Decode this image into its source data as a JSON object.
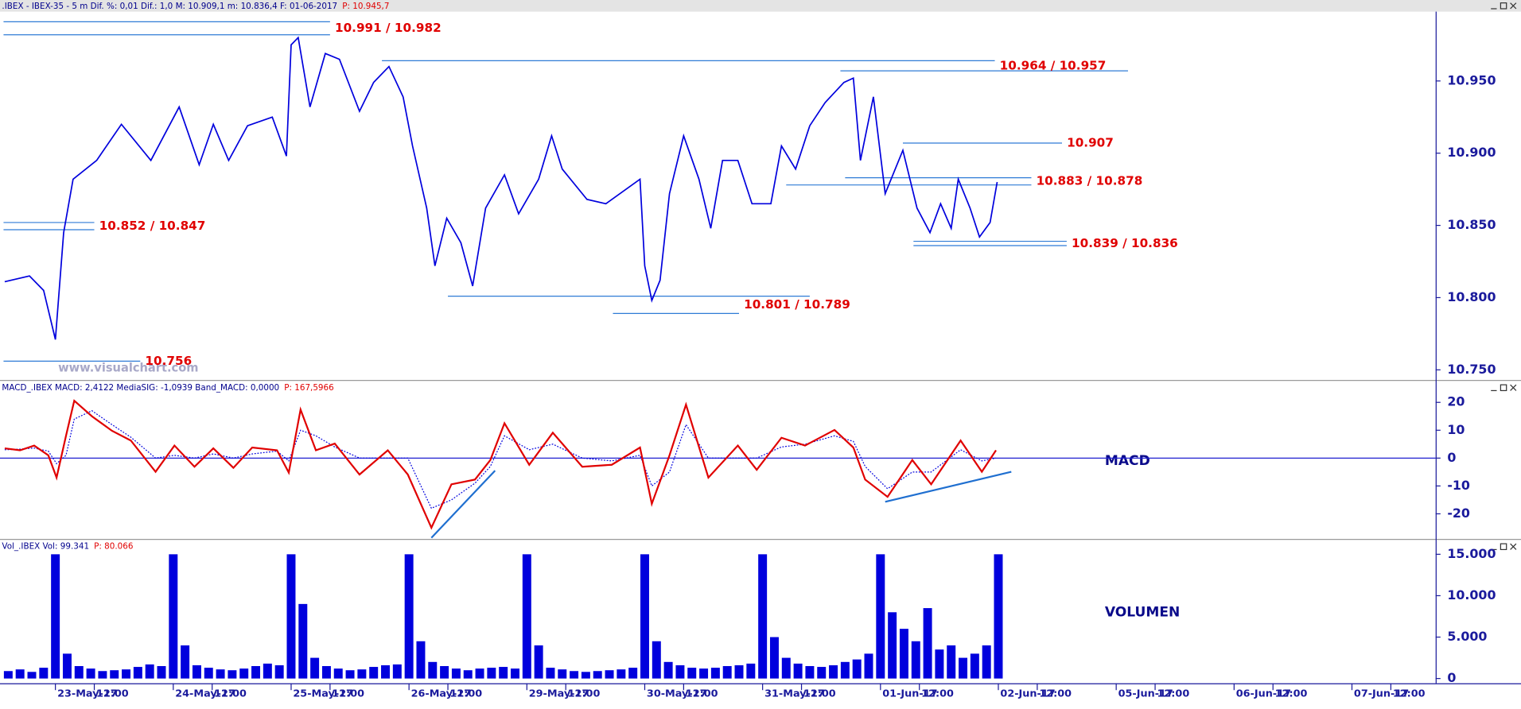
{
  "chart_data": [
    {
      "type": "line",
      "title": ".IBEX - IBEX-35 -  5 m  Dif. %: 0,01  Dif.: 1,0  M: 10.909,1  m: 10.836,4  F: 01-06-2017",
      "title_extra": "P: 10.945,7",
      "watermark": "www.visualchart.com",
      "color": "#0000dd",
      "xlim": [
        -0.47,
        11.71
      ],
      "ylim": [
        10743,
        10998
      ],
      "yticks": [
        {
          "value": 10750,
          "label": "10.750"
        },
        {
          "value": 10800,
          "label": "10.800"
        },
        {
          "value": 10850,
          "label": "10.850"
        },
        {
          "value": 10900,
          "label": "10.900"
        },
        {
          "value": 10950,
          "label": "10.950"
        }
      ],
      "x": [
        -0.43,
        -0.22,
        -0.1,
        0,
        0.07,
        0.15,
        0.35,
        0.56,
        0.81,
        1.05,
        1.22,
        1.34,
        1.47,
        1.63,
        1.84,
        1.96,
        2.0,
        2.06,
        2.16,
        2.29,
        2.41,
        2.58,
        2.7,
        2.83,
        2.95,
        3.03,
        3.15,
        3.22,
        3.32,
        3.44,
        3.54,
        3.65,
        3.81,
        3.93,
        4.1,
        4.21,
        4.3,
        4.51,
        4.67,
        4.96,
        5.0,
        5.06,
        5.13,
        5.21,
        5.33,
        5.46,
        5.56,
        5.66,
        5.79,
        5.91,
        6.07,
        6.16,
        6.28,
        6.4,
        6.53,
        6.69,
        6.77,
        6.83,
        6.94,
        7.04,
        7.19,
        7.31,
        7.42,
        7.51,
        7.6,
        7.66,
        7.76,
        7.84,
        7.93,
        7.99
      ],
      "values": [
        10811,
        10815,
        10805,
        10771,
        10845,
        10882,
        10895,
        10920,
        10895,
        10932,
        10892,
        10920,
        10895,
        10919,
        10925,
        10898,
        10975,
        10980,
        10932,
        10969,
        10965,
        10929,
        10949,
        10960,
        10939,
        10905,
        10862,
        10822,
        10855,
        10838,
        10808,
        10862,
        10885,
        10858,
        10882,
        10912,
        10889,
        10868,
        10865,
        10882,
        10822,
        10798,
        10812,
        10872,
        10912,
        10882,
        10848,
        10895,
        10895,
        10865,
        10865,
        10905,
        10889,
        10919,
        10935,
        10949,
        10952,
        10895,
        10939,
        10872,
        10902,
        10862,
        10845,
        10865,
        10848,
        10882,
        10862,
        10842,
        10852,
        10880
      ],
      "levels": [
        {
          "label": "10.991 / 10.982",
          "lines": [
            {
              "value": 10991,
              "x": [
                -0.44,
                2.33
              ]
            },
            {
              "value": 10982,
              "x": [
                -0.44,
                2.33
              ]
            }
          ]
        },
        {
          "label": "10.964 / 10.957",
          "lines": [
            {
              "value": 10964,
              "x": [
                2.77,
                7.97
              ]
            },
            {
              "value": 10957,
              "x": [
                6.66,
                9.1
              ]
            }
          ]
        },
        {
          "label": "10.907",
          "lines": [
            {
              "value": 10907,
              "x": [
                7.19,
                8.54
              ]
            }
          ]
        },
        {
          "label": "10.883 / 10.878",
          "lines": [
            {
              "value": 10883,
              "x": [
                6.7,
                8.28
              ]
            },
            {
              "value": 10878,
              "x": [
                6.2,
                8.28
              ]
            }
          ]
        },
        {
          "label": "10.852 / 10.847",
          "lines": [
            {
              "value": 10852,
              "x": [
                -0.44,
                0.33
              ]
            },
            {
              "value": 10847,
              "x": [
                -0.44,
                0.33
              ]
            }
          ]
        },
        {
          "label": "10.839 / 10.836",
          "lines": [
            {
              "value": 10839,
              "x": [
                7.28,
                8.58
              ]
            },
            {
              "value": 10836,
              "x": [
                7.28,
                8.58
              ]
            }
          ]
        },
        {
          "label": "10.801 / 10.789",
          "lines": [
            {
              "value": 10801,
              "x": [
                3.33,
                6.4
              ]
            },
            {
              "value": 10789,
              "x": [
                4.73,
                5.8
              ]
            }
          ]
        },
        {
          "label": "10.756",
          "lines": [
            {
              "value": 10756,
              "x": [
                -0.44,
                0.72
              ]
            }
          ]
        }
      ]
    },
    {
      "type": "line",
      "title": "MACD_.IBEX  MACD: 2,4122  MediaSIG: -1,0939  Band_MACD: 0,0000",
      "title_extra": "P: 167,5966",
      "panel_label": "MACD",
      "xlim": [
        -0.47,
        11.71
      ],
      "ylim": [
        -29,
        27.7
      ],
      "yticks": [
        -20,
        -10,
        0,
        10,
        20
      ],
      "x": [
        -0.43,
        -0.3,
        -0.18,
        -0.06,
        0.01,
        0.09,
        0.16,
        0.31,
        0.48,
        0.64,
        0.85,
        1.01,
        1.18,
        1.34,
        1.51,
        1.67,
        1.88,
        1.98,
        2.08,
        2.21,
        2.37,
        2.58,
        2.82,
        2.99,
        3.19,
        3.36,
        3.56,
        3.69,
        3.81,
        4.02,
        4.22,
        4.47,
        4.72,
        4.96,
        5.06,
        5.21,
        5.35,
        5.54,
        5.79,
        5.95,
        6.16,
        6.36,
        6.61,
        6.77,
        6.87,
        7.06,
        7.27,
        7.43,
        7.68,
        7.86,
        7.98
      ],
      "series": [
        {
          "name": "MACD",
          "color": "#e00000",
          "style": "solid",
          "values": [
            3.5,
            2.8,
            4.5,
            1,
            -7,
            8,
            20.6,
            15,
            9.8,
            6.3,
            -4.9,
            4.5,
            -3.1,
            3.5,
            -3.5,
            3.8,
            2.8,
            -5.2,
            17.4,
            2.8,
            5.2,
            -5.9,
            2.8,
            -5.9,
            -25,
            -9.4,
            -7.7,
            -0.7,
            12.5,
            -2.4,
            9.1,
            -3.1,
            -2.4,
            3.8,
            -16.4,
            1,
            19.2,
            -7,
            4.5,
            -4.2,
            7.3,
            4.5,
            10.1,
            3.8,
            -7.7,
            -13.9,
            -0.7,
            -9.4,
            6.3,
            -4.9,
            2.8
          ]
        },
        {
          "name": "MediaSIG",
          "color": "#0000dd",
          "style": "dotted",
          "values": [
            3,
            3.2,
            3.6,
            2.5,
            -2,
            1,
            14,
            17,
            12,
            7.5,
            0,
            1,
            0,
            1.5,
            0,
            1.5,
            2.5,
            -1,
            10,
            8,
            4,
            0,
            0,
            0,
            -18,
            -15,
            -9,
            -3,
            8,
            3,
            5,
            0,
            -1,
            1,
            -10,
            -5,
            12,
            0,
            0,
            0,
            4,
            5,
            8,
            6,
            -3,
            -11,
            -5,
            -5,
            3,
            -1,
            0
          ]
        }
      ],
      "reference_lines": [
        0
      ],
      "trendlines": [
        {
          "x": [
            3.19,
            3.73
          ],
          "y": [
            -28.6,
            -4.5
          ]
        },
        {
          "x": [
            7.04,
            8.11
          ],
          "y": [
            -15.7,
            -4.9
          ]
        }
      ]
    },
    {
      "type": "bar",
      "title": "Vol_.IBEX  Vol: 99.341",
      "title_extra": "P: 80.066",
      "panel_label": "VOLUMEN",
      "color": "#0000dd",
      "xlim": [
        -0.47,
        11.71
      ],
      "ylim": [
        -580,
        16740
      ],
      "yticks": [
        0,
        {
          "value": 5000,
          "label": "5.000"
        },
        {
          "value": 10000,
          "label": "10.000"
        },
        {
          "value": 15000,
          "label": "15.000"
        }
      ],
      "x": [
        -0.4,
        -0.3,
        -0.2,
        -0.1,
        0.0,
        0.1,
        0.2,
        0.3,
        0.4,
        0.5,
        0.6,
        0.7,
        0.8,
        0.9,
        1.0,
        1.1,
        1.2,
        1.3,
        1.4,
        1.5,
        1.6,
        1.7,
        1.8,
        1.9,
        2.0,
        2.1,
        2.2,
        2.3,
        2.4,
        2.5,
        2.6,
        2.7,
        2.8,
        2.9,
        3.0,
        3.1,
        3.2,
        3.3,
        3.4,
        3.5,
        3.6,
        3.7,
        3.8,
        3.9,
        4.0,
        4.1,
        4.2,
        4.3,
        4.4,
        4.5,
        4.6,
        4.7,
        4.8,
        4.9,
        5.0,
        5.1,
        5.2,
        5.3,
        5.4,
        5.5,
        5.6,
        5.7,
        5.8,
        5.9,
        6.0,
        6.1,
        6.2,
        6.3,
        6.4,
        6.5,
        6.6,
        6.7,
        6.8,
        6.9,
        7.0,
        7.1,
        7.2,
        7.3,
        7.4,
        7.5,
        7.6,
        7.7,
        7.8,
        7.9,
        8.0
      ],
      "values": [
        900,
        1100,
        800,
        1300,
        15000,
        3000,
        1500,
        1200,
        900,
        1000,
        1100,
        1400,
        1700,
        1500,
        15000,
        4000,
        1600,
        1300,
        1100,
        1000,
        1200,
        1500,
        1800,
        1600,
        15000,
        9000,
        2500,
        1500,
        1200,
        1000,
        1100,
        1400,
        1600,
        1700,
        15000,
        4500,
        2000,
        1500,
        1200,
        1000,
        1200,
        1300,
        1400,
        1200,
        15000,
        4000,
        1300,
        1100,
        900,
        800,
        900,
        1000,
        1100,
        1300,
        15000,
        4500,
        2000,
        1600,
        1300,
        1200,
        1300,
        1500,
        1600,
        1800,
        15000,
        5000,
        2500,
        1800,
        1500,
        1400,
        1600,
        2000,
        2300,
        3000,
        15000,
        8000,
        6000,
        4500,
        8500,
        3500,
        4000,
        2500,
        3000,
        4000,
        15000
      ],
      "xticks": [
        {
          "value": 0,
          "label": "23-May-17"
        },
        {
          "value": 0.33,
          "label": "12:00"
        },
        {
          "value": 1,
          "label": "24-May-17"
        },
        {
          "value": 1.33,
          "label": "12:00"
        },
        {
          "value": 2,
          "label": "25-May-17"
        },
        {
          "value": 2.33,
          "label": "12:00"
        },
        {
          "value": 3,
          "label": "26-May-17"
        },
        {
          "value": 3.33,
          "label": "12:00"
        },
        {
          "value": 4,
          "label": "29-May-17"
        },
        {
          "value": 4.33,
          "label": "12:00"
        },
        {
          "value": 5,
          "label": "30-May-17"
        },
        {
          "value": 5.33,
          "label": "12:00"
        },
        {
          "value": 6,
          "label": "31-May-17"
        },
        {
          "value": 6.33,
          "label": "12:00"
        },
        {
          "value": 7,
          "label": "01-Jun-17"
        },
        {
          "value": 7.33,
          "label": "12:00"
        },
        {
          "value": 8,
          "label": "02-Jun-17"
        },
        {
          "value": 8.33,
          "label": "12:00"
        },
        {
          "value": 9,
          "label": "05-Jun-17"
        },
        {
          "value": 9.33,
          "label": "12:00"
        },
        {
          "value": 10,
          "label": "06-Jun-17"
        },
        {
          "value": 10.33,
          "label": "12:00"
        },
        {
          "value": 11,
          "label": "07-Jun-17"
        },
        {
          "value": 11.33,
          "label": "12:00"
        }
      ]
    }
  ]
}
